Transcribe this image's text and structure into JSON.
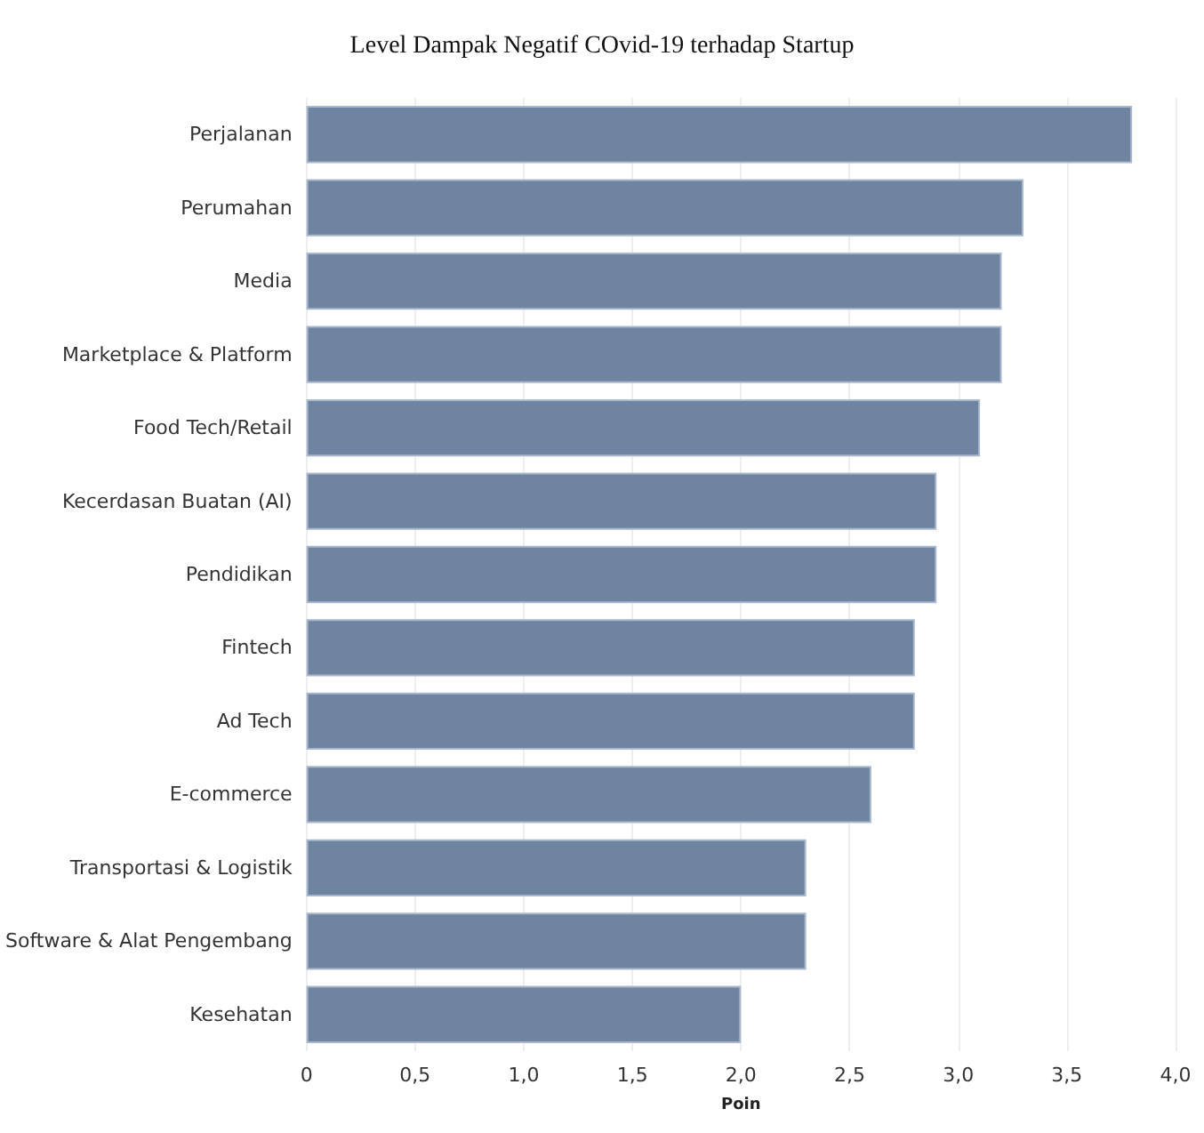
{
  "chart_data": {
    "type": "bar",
    "orientation": "horizontal",
    "title": "Level Dampak Negatif COvid-19 terhadap Startup",
    "xlabel": "Poin",
    "categories": [
      "Perjalanan",
      "Perumahan",
      "Media",
      "Marketplace & Platform",
      "Food Tech/Retail",
      "Kecerdasan Buatan (AI)",
      "Pendidikan",
      "Fintech",
      "Ad Tech",
      "E-commerce",
      "Transportasi & Logistik",
      "Software & Alat Pengembang",
      "Kesehatan"
    ],
    "values": [
      3.8,
      3.3,
      3.2,
      3.2,
      3.1,
      2.9,
      2.9,
      2.8,
      2.8,
      2.6,
      2.3,
      2.3,
      2.0
    ],
    "color": "#6f84a0",
    "xlim": [
      0,
      4
    ],
    "xticks": [
      0,
      {
        "value": 0.5,
        "label": "0,5"
      },
      {
        "value": 1,
        "label": "1,0"
      },
      {
        "value": 1.5,
        "label": "1,5"
      },
      {
        "value": 2,
        "label": "2,0"
      },
      {
        "value": 2.5,
        "label": "2,5"
      },
      {
        "value": 3,
        "label": "3,0"
      },
      {
        "value": 3.5,
        "label": "3,5"
      },
      {
        "value": 4,
        "label": "4,0"
      }
    ],
    "grid": "x"
  }
}
